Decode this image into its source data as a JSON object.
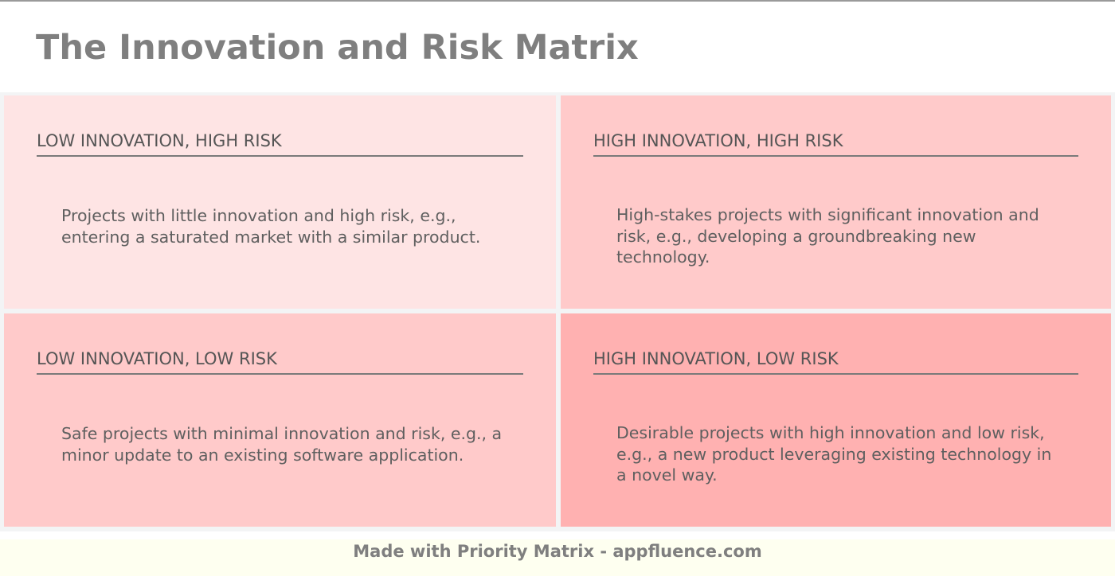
{
  "page": {
    "title": "The Innovation and Risk Matrix"
  },
  "quadrants": [
    {
      "position": "top-left",
      "heading": "LOW INNOVATION, HIGH RISK",
      "description": "Projects with little innovation and high risk, e.g., entering a saturated market with a similar product.",
      "color": "#fee4e4"
    },
    {
      "position": "top-right",
      "heading": "HIGH INNOVATION, HIGH RISK",
      "description": "High-stakes projects with significant innovation and risk, e.g., developing a groundbreaking new technology.",
      "color": "#ffcaca"
    },
    {
      "position": "bottom-left",
      "heading": "LOW INNOVATION, LOW RISK",
      "description": "Safe projects with minimal innovation and risk, e.g., a minor update to an existing software application.",
      "color": "#ffcaca"
    },
    {
      "position": "bottom-right",
      "heading": "HIGH INNOVATION, LOW RISK",
      "description": "Desirable projects with high innovation and low risk, e.g., a new product leveraging existing technology in a novel way.",
      "color": "#ffb1b1"
    }
  ],
  "footer": {
    "text": "Made with Priority Matrix - appfluence.com"
  }
}
